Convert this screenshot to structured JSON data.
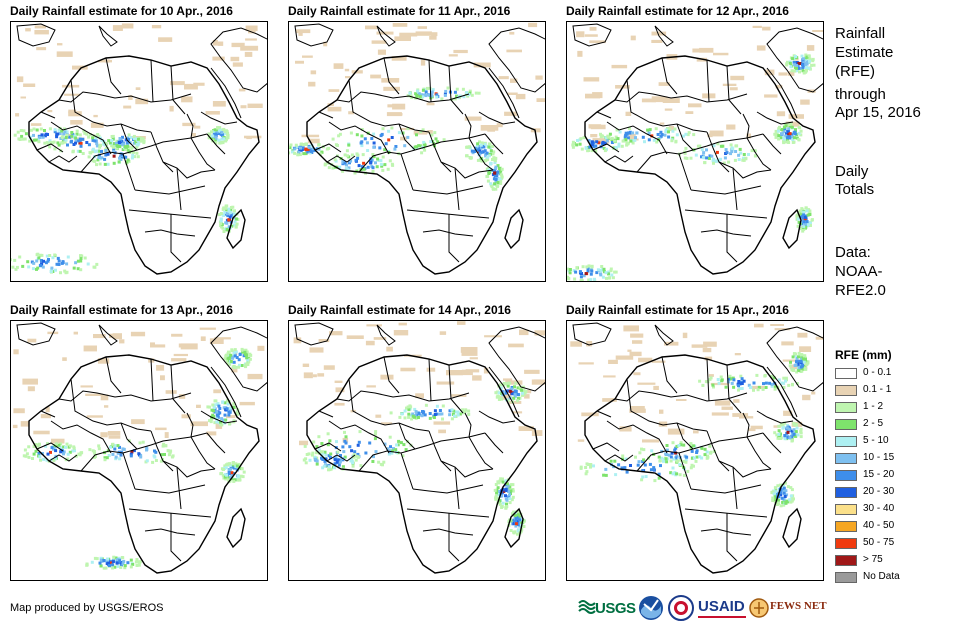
{
  "panels": [
    {
      "title": "Daily Rainfall estimate for 10 Apr., 2016",
      "day": 10
    },
    {
      "title": "Daily Rainfall estimate for 11 Apr., 2016",
      "day": 11
    },
    {
      "title": "Daily Rainfall estimate for 12 Apr., 2016",
      "day": 12
    },
    {
      "title": "Daily Rainfall estimate for 13 Apr., 2016",
      "day": 13
    },
    {
      "title": "Daily Rainfall estimate for 14 Apr., 2016",
      "day": 14
    },
    {
      "title": "Daily Rainfall estimate for 15 Apr., 2016",
      "day": 15
    }
  ],
  "side": {
    "title_line1": "Rainfall",
    "title_line2": "Estimate",
    "title_line3": "(RFE)",
    "through": "through",
    "date": "Apr 15, 2016",
    "daily1": "Daily",
    "daily2": "Totals",
    "data1": "Data:",
    "data2": "NOAA-",
    "data3": "RFE2.0"
  },
  "legend": {
    "title": "RFE (mm)",
    "items": [
      {
        "label": "0 - 0.1",
        "color": "#ffffff"
      },
      {
        "label": "0.1 - 1",
        "color": "#e8d3b4"
      },
      {
        "label": "1 - 2",
        "color": "#bff5b0"
      },
      {
        "label": "2 - 5",
        "color": "#7ee36c"
      },
      {
        "label": "5 - 10",
        "color": "#aef0f2"
      },
      {
        "label": "10 - 15",
        "color": "#7ec0f0"
      },
      {
        "label": "15 - 20",
        "color": "#3e8eea"
      },
      {
        "label": "20 - 30",
        "color": "#1f5fe0"
      },
      {
        "label": "30 - 40",
        "color": "#fbe08a"
      },
      {
        "label": "40 - 50",
        "color": "#f5a623"
      },
      {
        "label": "50 - 75",
        "color": "#f03a0e"
      },
      {
        "label": "> 75",
        "color": "#a01818"
      },
      {
        "label": "No Data",
        "color": "#9a9a9a"
      }
    ]
  },
  "credit": "Map produced by USGS/EROS",
  "logos": {
    "usgs": "USGS",
    "usaid": "USAID",
    "fews": "FEWS NET"
  }
}
